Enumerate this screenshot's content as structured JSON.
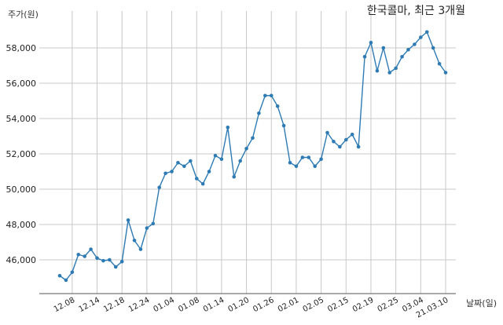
{
  "chart_data": {
    "type": "line",
    "title": "한국콜마, 최근 3개월",
    "ylabel": "주가(원)",
    "xlabel": "날짜(일)",
    "ylim": [
      44300,
      59800
    ],
    "yticks": [
      46000,
      48000,
      50000,
      52000,
      54000,
      56000,
      58000
    ],
    "ytick_labels": [
      "46,000",
      "48,000",
      "50,000",
      "52,000",
      "54,000",
      "56,000",
      "58,000"
    ],
    "grid": true,
    "line_color": "#2e7bb4",
    "x_ticks": [
      {
        "label": "12.08",
        "index": 2
      },
      {
        "label": "12.14",
        "index": 6
      },
      {
        "label": "12.18",
        "index": 10
      },
      {
        "label": "12.24",
        "index": 14
      },
      {
        "label": "01.04",
        "index": 18
      },
      {
        "label": "01.08",
        "index": 22
      },
      {
        "label": "01.14",
        "index": 26
      },
      {
        "label": "01.20",
        "index": 30
      },
      {
        "label": "01.26",
        "index": 34
      },
      {
        "label": "02.01",
        "index": 38
      },
      {
        "label": "02.05",
        "index": 42
      },
      {
        "label": "02.15",
        "index": 46
      },
      {
        "label": "02.19",
        "index": 50
      },
      {
        "label": "02.25",
        "index": 54
      },
      {
        "label": "03.04",
        "index": 58
      },
      {
        "label": "21.03.10",
        "index": 62
      }
    ],
    "values": [
      45100,
      44850,
      45300,
      46300,
      46200,
      46600,
      46100,
      45950,
      46000,
      45600,
      45900,
      48250,
      47100,
      46600,
      47800,
      48050,
      50100,
      50900,
      51000,
      51500,
      51300,
      51600,
      50600,
      50300,
      51000,
      51900,
      51700,
      53500,
      50700,
      51600,
      52300,
      52900,
      54300,
      55300,
      55300,
      54700,
      53600,
      51500,
      51300,
      51800,
      51800,
      51300,
      51700,
      53200,
      52700,
      52400,
      52800,
      53100,
      52400,
      57500,
      58300,
      56700,
      58000,
      56600,
      56850,
      57500,
      57900,
      58200,
      58600,
      58900,
      58000,
      57100,
      56600
    ]
  }
}
